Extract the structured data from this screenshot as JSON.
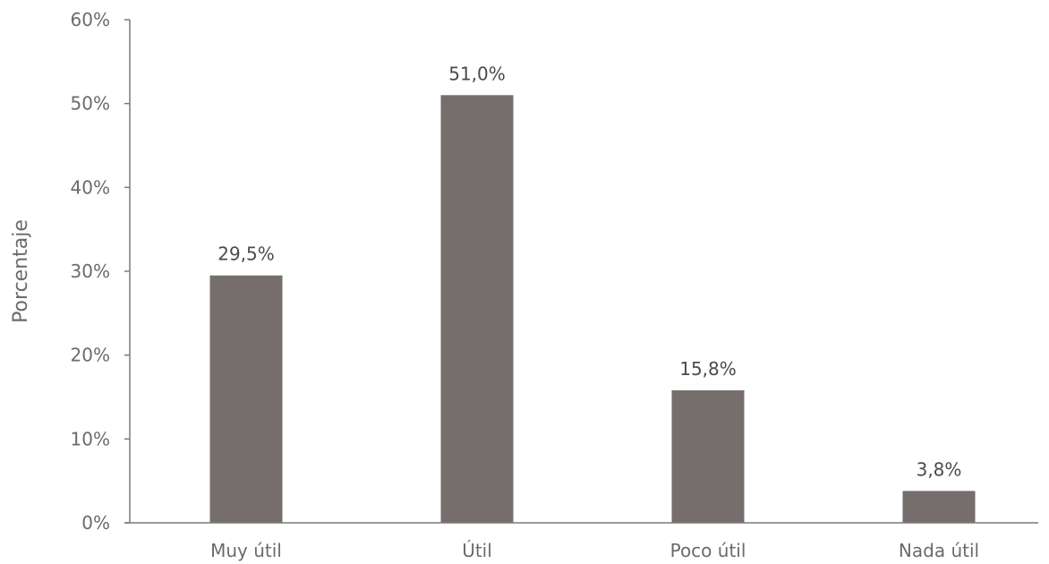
{
  "chart_data": {
    "type": "bar",
    "categories": [
      "Muy útil",
      "Útil",
      "Poco útil",
      "Nada útil"
    ],
    "values": [
      29.5,
      51.0,
      15.8,
      3.8
    ],
    "data_labels": [
      "29,5%",
      "51,0%",
      "15,8%",
      "3,8%"
    ],
    "title": "",
    "xlabel": "",
    "ylabel": "Porcentaje",
    "ylim": [
      0,
      60
    ],
    "yticks": [
      0,
      10,
      20,
      30,
      40,
      50,
      60
    ],
    "ytick_labels": [
      "0%",
      "10%",
      "20%",
      "30%",
      "40%",
      "50%",
      "60%"
    ],
    "grid": false,
    "legend": "none",
    "colors": {
      "bar": "#766d6d",
      "axis": "#7a7a7a",
      "text": "#6b6b6b"
    }
  }
}
